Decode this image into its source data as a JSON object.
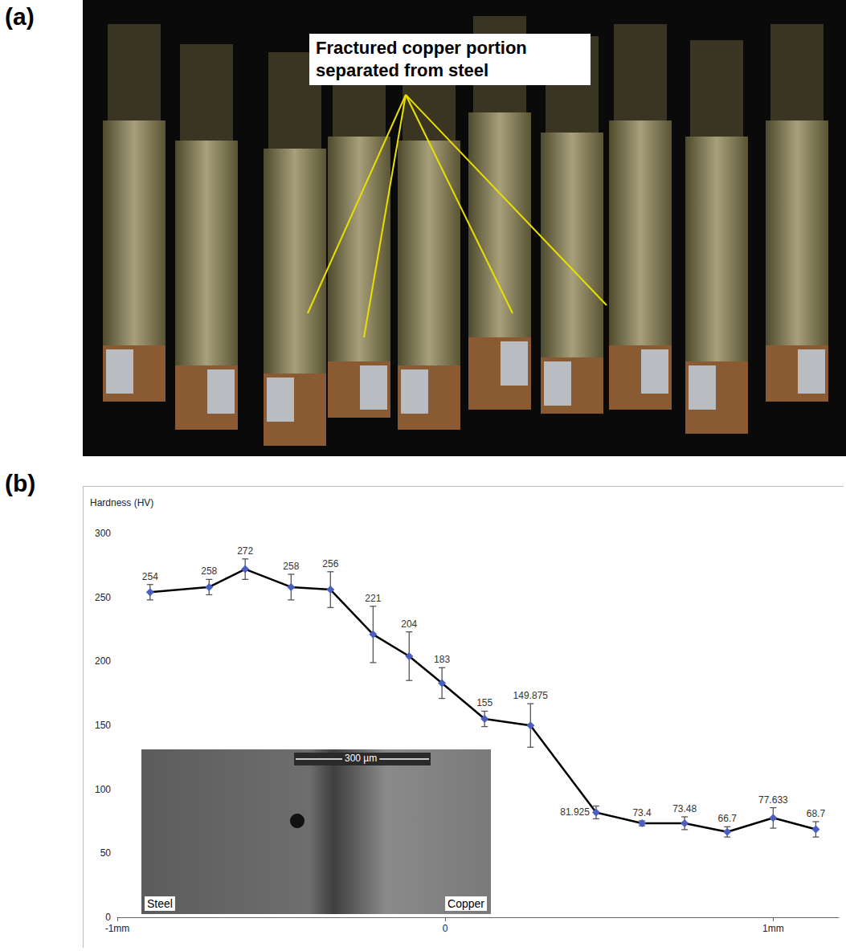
{
  "panel_a": {
    "letter": "(a)",
    "annotation": "Fractured copper portion separated from steel"
  },
  "chart_data": {
    "letter": "(b)",
    "type": "line",
    "y_label": "Hardness (HV)",
    "x": [
      -0.9,
      -0.72,
      -0.61,
      -0.47,
      -0.35,
      -0.22,
      -0.11,
      -0.01,
      0.12,
      0.26,
      0.46,
      0.6,
      0.73,
      0.86,
      1.0,
      1.13
    ],
    "values": [
      254,
      258,
      272,
      258,
      256,
      221,
      204,
      183,
      155,
      149.875,
      81.925,
      73.4,
      73.48,
      66.7,
      77.633,
      68.7
    ],
    "errors": [
      6,
      6,
      8,
      10,
      14,
      22,
      19,
      12,
      6,
      17,
      5,
      2,
      5,
      4,
      8,
      6
    ],
    "color": "#4a5fc1",
    "marker": "diamond",
    "data_labels": true,
    "xlim": [
      -1,
      1.2
    ],
    "xticks": [
      {
        "value": -1,
        "label": "-1mm"
      },
      0,
      {
        "value": 1,
        "label": "1mm"
      }
    ],
    "ylim": [
      0,
      300
    ],
    "yticks": [
      0,
      50,
      100,
      150,
      200,
      250,
      300
    ],
    "grid": false,
    "inset": {
      "scale_bar": "300 µm",
      "left_label": "Steel",
      "right_label": "Copper"
    }
  }
}
